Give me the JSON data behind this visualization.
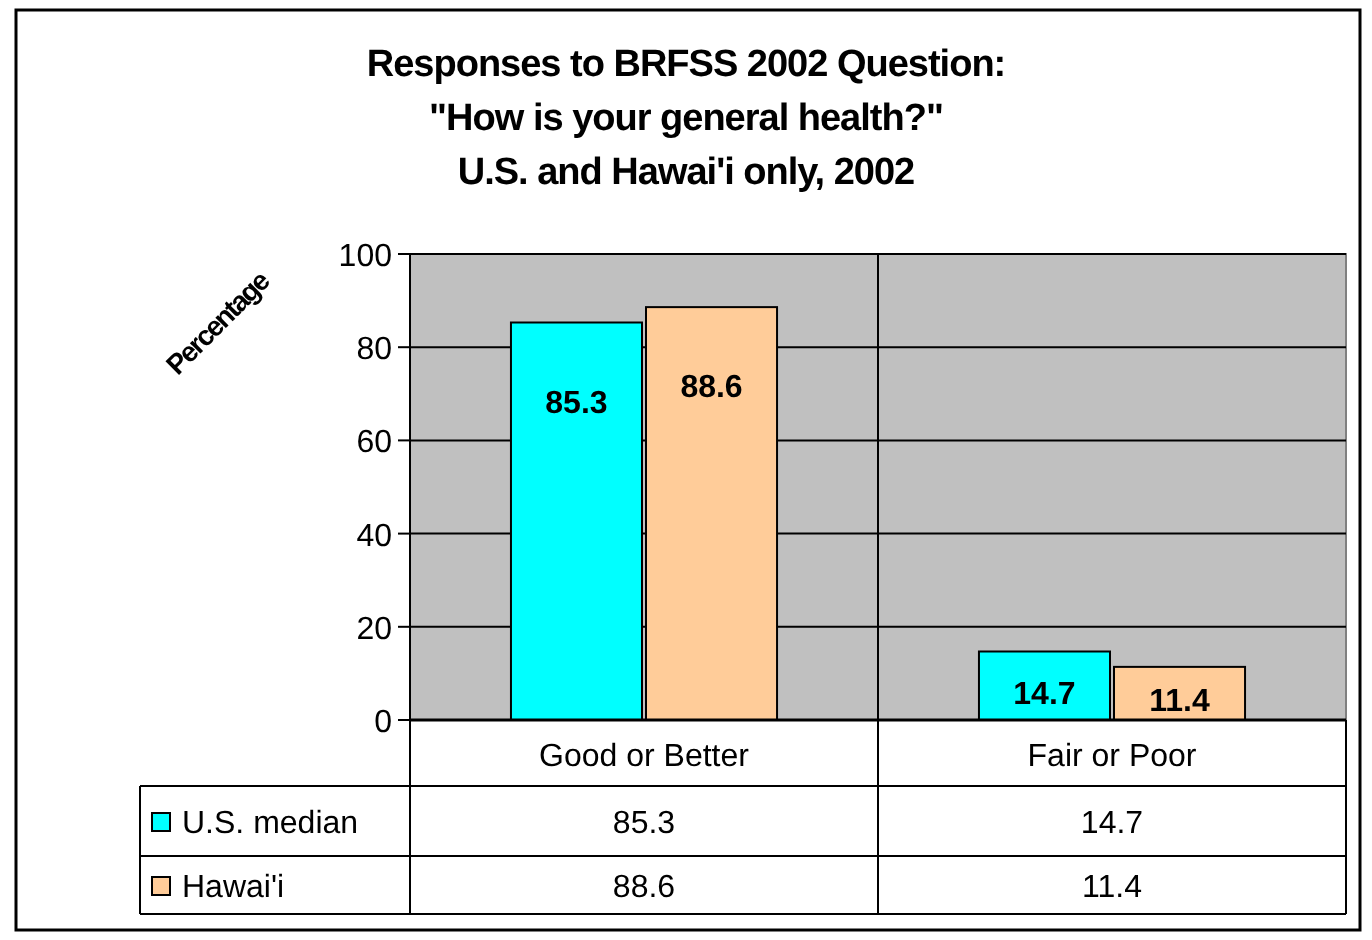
{
  "chart_data": {
    "type": "bar",
    "title": "Responses to BRFSS 2002 Question:\n\"How is your general health?\"\nU.S. and Hawai'i only, 2002",
    "ylabel": "Percentage",
    "categories": [
      "Good or Better",
      "Fair or Poor"
    ],
    "series": [
      {
        "name": "U.S. median",
        "color": "#00ffff",
        "values": [
          85.3,
          14.7
        ]
      },
      {
        "name": "Hawai'i",
        "color": "#ffcc99",
        "values": [
          88.6,
          11.4
        ]
      }
    ],
    "annotations": [
      {
        "text": "85.3",
        "x": "Good or Better",
        "y": 85.3
      },
      {
        "text": "14.7",
        "x": "Fair or Poor",
        "y": 14.7
      },
      {
        "text": "88.6",
        "x": "Good or Better",
        "y": 88.6
      },
      {
        "text": "11.4",
        "x": "Fair or Poor",
        "y": 11.4
      }
    ],
    "ylim": [
      0,
      100
    ],
    "yticks": [
      0,
      20,
      40,
      60,
      80,
      100
    ],
    "grid": "y",
    "legend": "bottom",
    "data_labels": true
  }
}
